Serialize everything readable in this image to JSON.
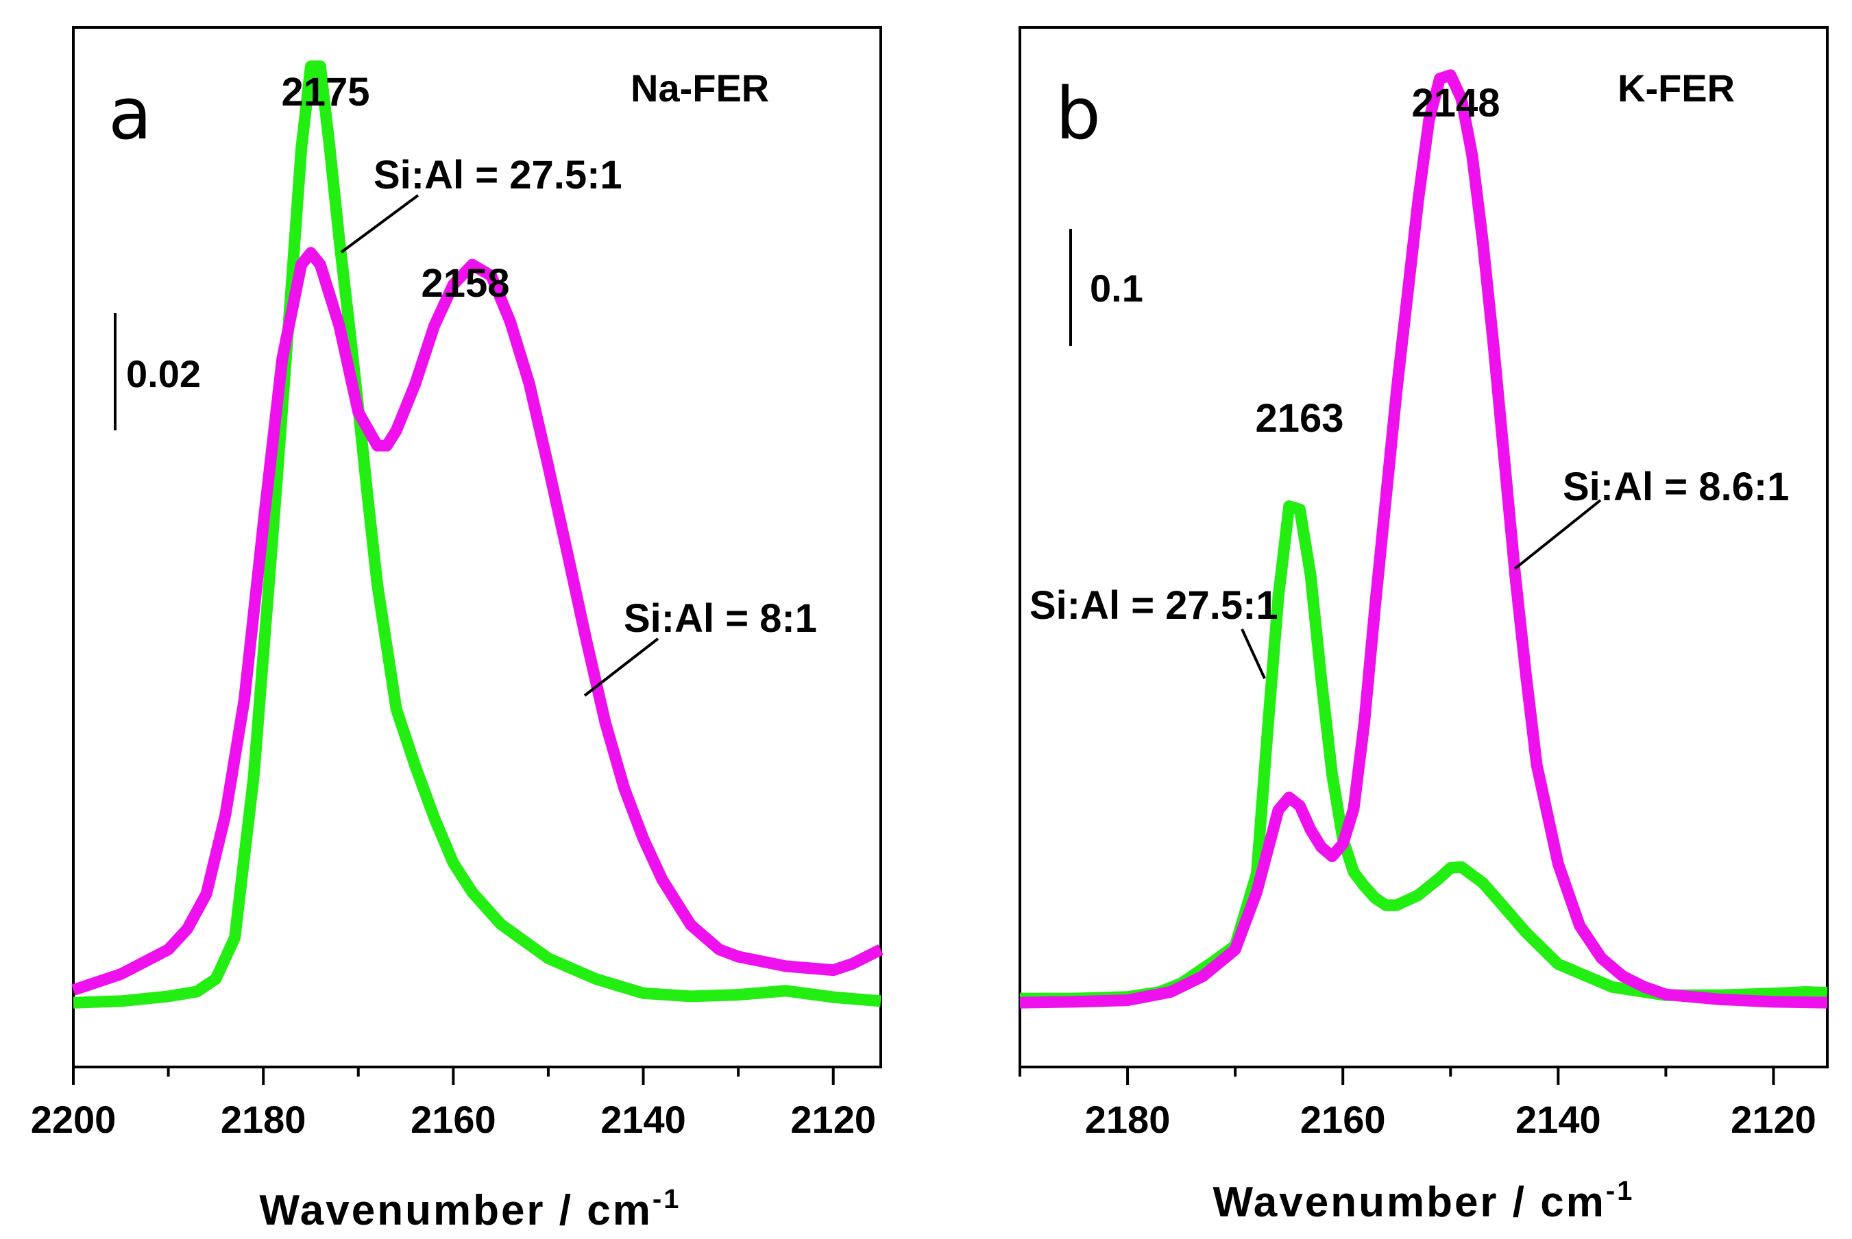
{
  "chart_data": [
    {
      "type": "line",
      "panel_label": "a",
      "sample_label": "Na-FER",
      "xlabel": "Wavenumber / cm",
      "xlabel_superscript": "-1",
      "xlim": [
        2200,
        2115
      ],
      "ylim": [
        -0.008,
        0.123
      ],
      "xticks": [
        2200,
        2180,
        2160,
        2140,
        2120
      ],
      "xtick_labels": [
        "2200",
        "2180",
        "2160",
        "2140",
        "2120"
      ],
      "scale_bar": {
        "value": 0.02,
        "label": "0.02"
      },
      "peak_labels": [
        {
          "text": "2175",
          "x": 2174.5,
          "y": 0.1168
        },
        {
          "text": "2158",
          "x": 2158.6,
          "y": 0.0933
        }
      ],
      "series": [
        {
          "name": "Si:Al = 27.5:1",
          "color": "#22ee11",
          "x": [
            2200,
            2195,
            2190,
            2187,
            2185,
            2183,
            2181,
            2179,
            2177,
            2176,
            2175,
            2174,
            2173,
            2172,
            2171,
            2170,
            2169,
            2168,
            2166,
            2164,
            2162,
            2160,
            2158,
            2155,
            2150,
            2145,
            2140,
            2135,
            2130,
            2125,
            2120,
            2115
          ],
          "y": [
            0.0001,
            0.0003,
            0.0009,
            0.0015,
            0.0031,
            0.0083,
            0.0287,
            0.0591,
            0.0911,
            0.1077,
            0.1181,
            0.1181,
            0.1077,
            0.0963,
            0.0859,
            0.0751,
            0.0637,
            0.0528,
            0.0371,
            0.0299,
            0.0234,
            0.0177,
            0.014,
            0.01,
            0.0057,
            0.0031,
            0.0013,
            0.0009,
            0.0011,
            0.0016,
            0.0008,
            0.0003
          ]
        },
        {
          "name": "Si:Al = 8:1",
          "color": "#ee11ee",
          "x": [
            2200,
            2195,
            2190,
            2188,
            2186,
            2184,
            2182,
            2180,
            2178,
            2176,
            2175,
            2174,
            2172,
            2170,
            2168,
            2167,
            2166,
            2164,
            2162,
            2160,
            2158,
            2156,
            2154,
            2152,
            2150,
            2148,
            2146,
            2144,
            2142,
            2140,
            2138,
            2135,
            2132,
            2130,
            2125,
            2120,
            2118,
            2115
          ],
          "y": [
            0.0017,
            0.0037,
            0.0068,
            0.0094,
            0.0138,
            0.0237,
            0.0383,
            0.0604,
            0.0813,
            0.0931,
            0.0946,
            0.0931,
            0.0854,
            0.0745,
            0.0703,
            0.0703,
            0.0722,
            0.0781,
            0.0854,
            0.0906,
            0.0931,
            0.0917,
            0.0859,
            0.0781,
            0.0677,
            0.0568,
            0.0458,
            0.0354,
            0.0271,
            0.0208,
            0.0156,
            0.0099,
            0.0068,
            0.0059,
            0.0047,
            0.0042,
            0.005,
            0.0068
          ]
        }
      ]
    },
    {
      "type": "line",
      "panel_label": "b",
      "sample_label": "K-FER",
      "xlabel": "Wavenumber / cm",
      "xlabel_superscript": "-1",
      "xlim": [
        2190,
        2115
      ],
      "ylim": [
        -0.072,
        1.035
      ],
      "xticks": [
        2180,
        2160,
        2140,
        2120
      ],
      "xtick_labels": [
        "2180",
        "2160",
        "2140",
        "2120"
      ],
      "scale_bar": {
        "value": 0.1,
        "label": "0.1"
      },
      "peak_labels": [
        {
          "text": "2163",
          "x": 2164.6,
          "y": 0.5789
        },
        {
          "text": "2148",
          "x": 2150.5,
          "y": 0.9888
        }
      ],
      "series": [
        {
          "name": "Si:Al = 27.5:1",
          "color": "#22ee11",
          "x": [
            2190,
            2185,
            2180,
            2177,
            2175,
            2172,
            2170,
            2168,
            2167,
            2166,
            2165,
            2164,
            2163,
            2162,
            2161,
            2160,
            2159,
            2158,
            2157,
            2156,
            2155,
            2153,
            2151,
            2150,
            2149,
            2147,
            2145,
            2143,
            2140,
            2135,
            2130,
            2125,
            2120,
            2117,
            2115
          ],
          "y": [
            0.0009,
            0.0009,
            0.0026,
            0.0079,
            0.0172,
            0.0405,
            0.0573,
            0.1339,
            0.2853,
            0.4279,
            0.5252,
            0.5217,
            0.4516,
            0.3403,
            0.2397,
            0.1709,
            0.1356,
            0.1206,
            0.1079,
            0.1003,
            0.1003,
            0.1109,
            0.1294,
            0.14,
            0.1409,
            0.1241,
            0.0979,
            0.0714,
            0.0376,
            0.0132,
            0.0044,
            0.0044,
            0.0062,
            0.0079,
            0.007
          ]
        },
        {
          "name": "Si:Al = 8.6:1",
          "color": "#ee11ee",
          "x": [
            2190,
            2185,
            2180,
            2176,
            2173,
            2170,
            2168,
            2166,
            2165,
            2164,
            2163,
            2162,
            2161,
            2160,
            2159,
            2158,
            2157,
            2155,
            2153,
            2152,
            2151,
            2150,
            2149,
            2148,
            2147,
            2146,
            2145,
            2144,
            2143,
            2142,
            2140,
            2138,
            2136,
            2134,
            2132,
            2130,
            2125,
            2120,
            2115
          ],
          "y": [
            -0.0035,
            -0.0026,
            -0.0009,
            0.0079,
            0.0247,
            0.0529,
            0.1144,
            0.2014,
            0.215,
            0.2061,
            0.1806,
            0.1621,
            0.1524,
            0.1656,
            0.2026,
            0.2953,
            0.4191,
            0.6482,
            0.8508,
            0.9364,
            0.9805,
            0.9841,
            0.9594,
            0.8994,
            0.8067,
            0.6959,
            0.5746,
            0.4526,
            0.3466,
            0.2503,
            0.1444,
            0.0785,
            0.0441,
            0.0247,
            0.0132,
            0.0053,
            0.0,
            -0.0026,
            -0.0035
          ]
        }
      ]
    }
  ],
  "annotations": [
    {
      "chart": 0,
      "text": "Si:Al = 27.5:1",
      "series": 0
    },
    {
      "chart": 0,
      "text": "Si:Al = 8:1",
      "series": 1
    },
    {
      "chart": 1,
      "text": "Si:Al = 27.5:1",
      "series": 0
    },
    {
      "chart": 1,
      "text": "Si:Al = 8.6:1",
      "series": 1
    }
  ]
}
